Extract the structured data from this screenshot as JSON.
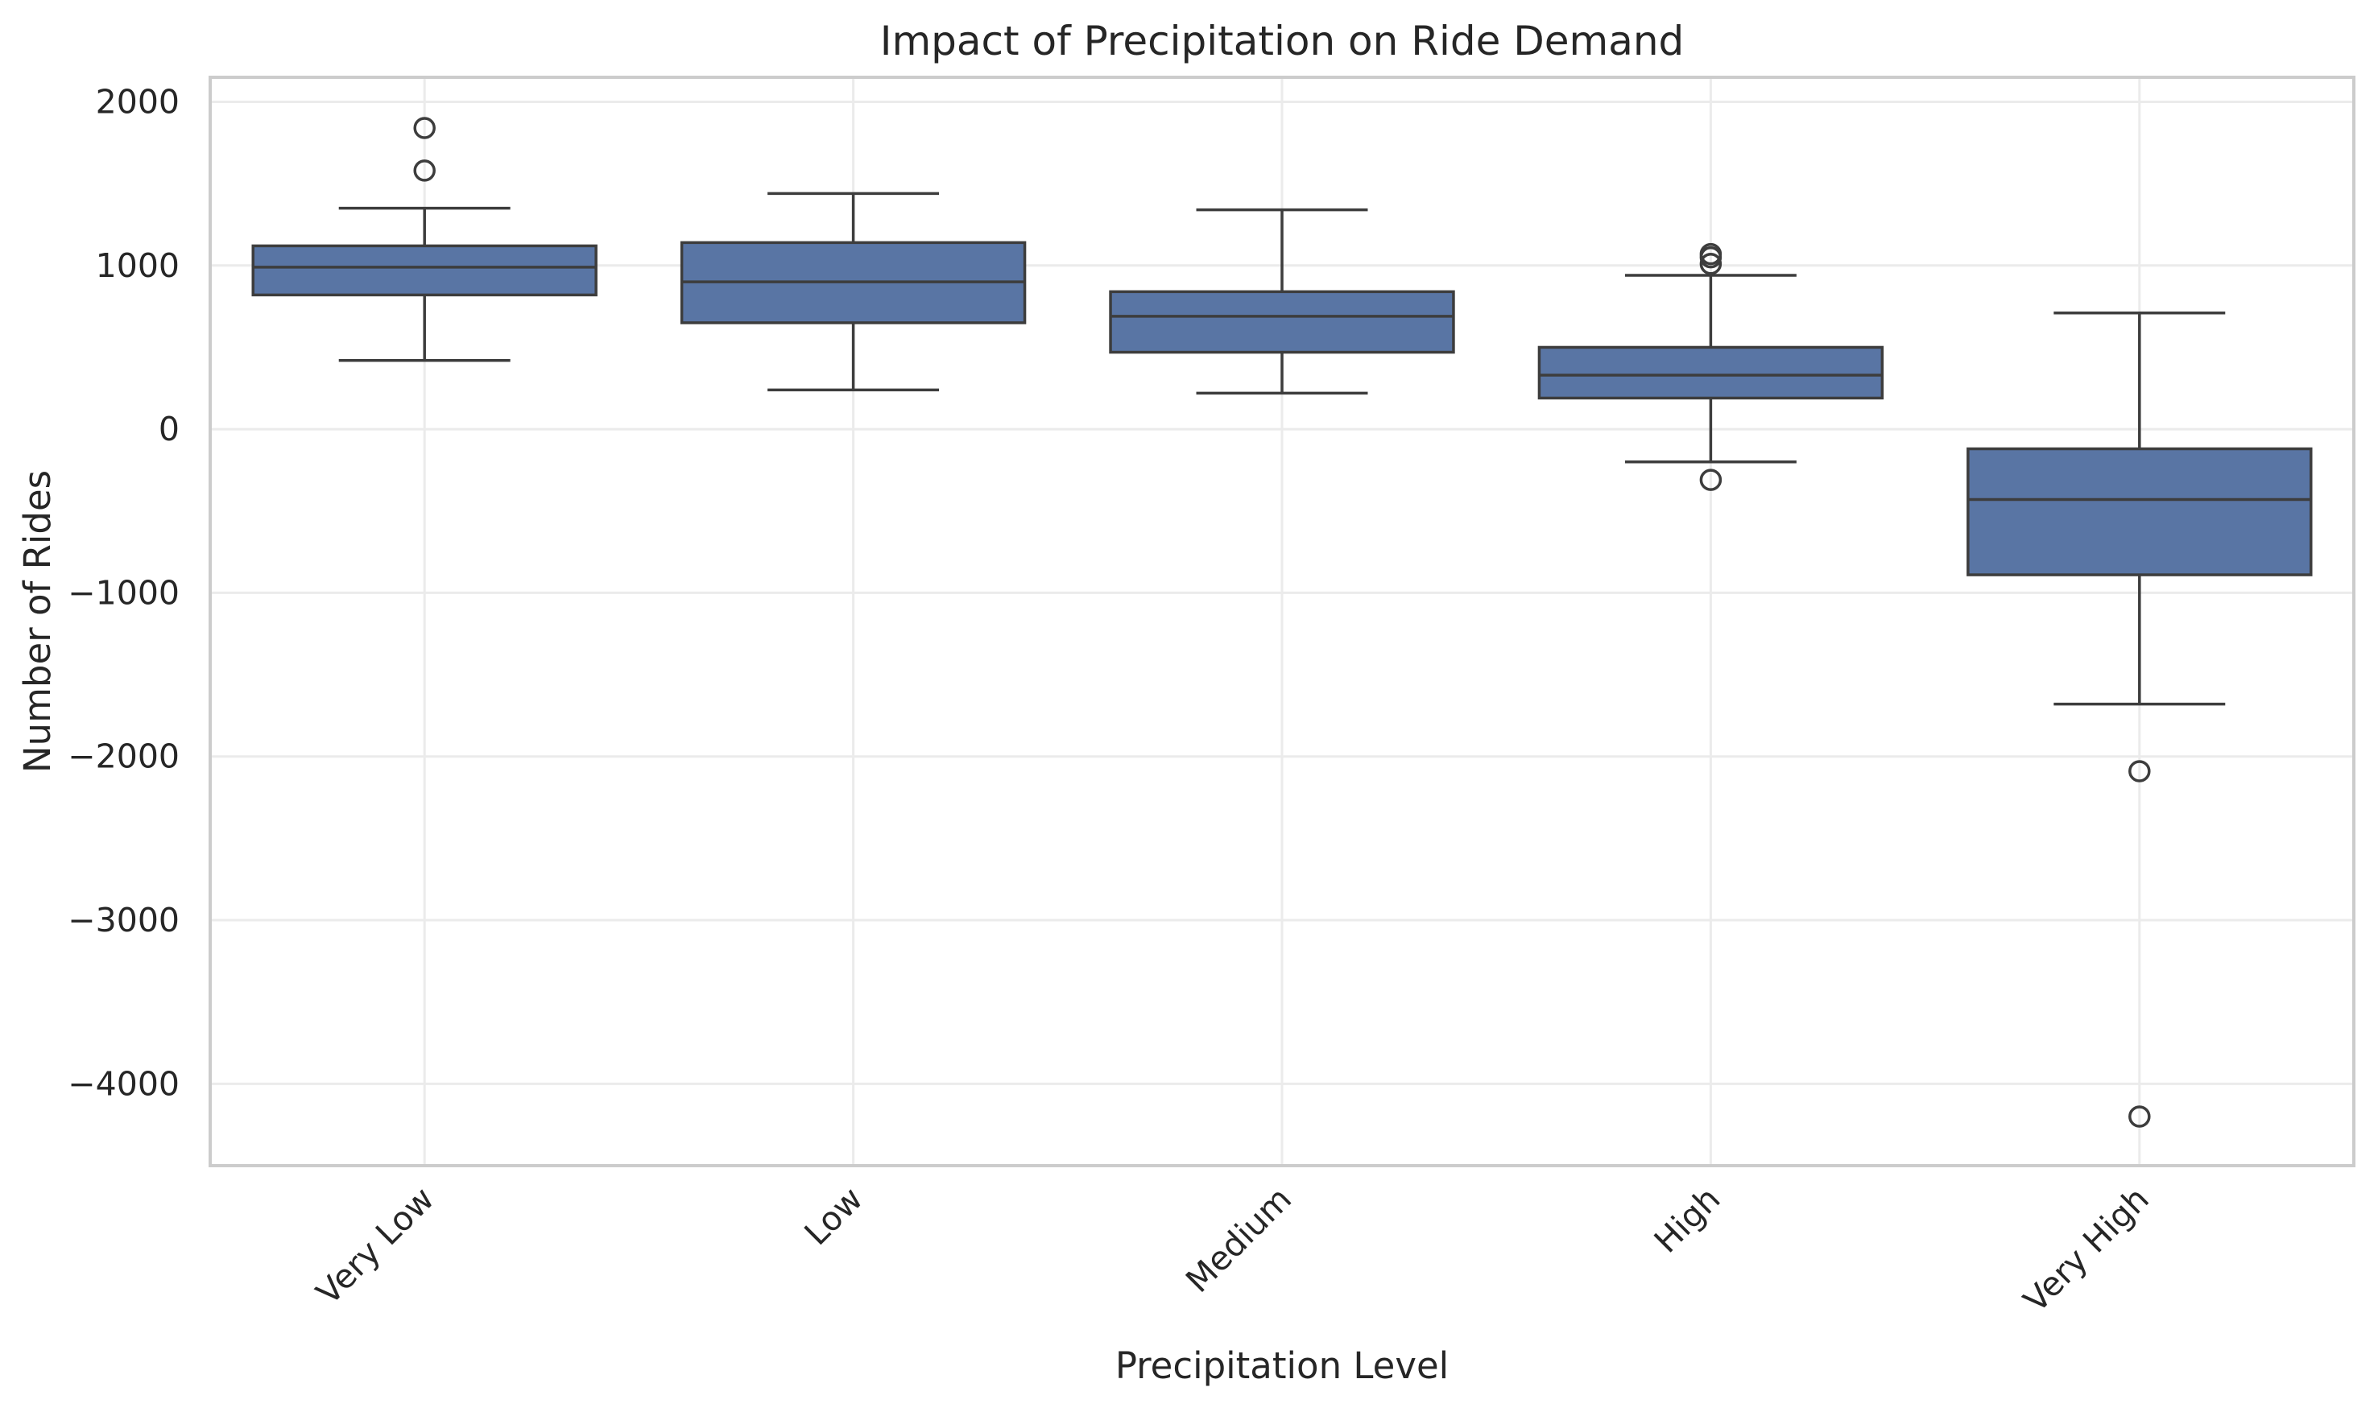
{
  "chart_data": {
    "type": "box",
    "title": "Impact of Precipitation on Ride Demand",
    "xlabel": "Precipitation Level",
    "ylabel": "Number of Rides",
    "ylim": [
      -4500,
      2150
    ],
    "yticks": [
      2000,
      1000,
      0,
      -1000,
      -2000,
      -3000,
      -4000
    ],
    "ytick_labels": [
      "2000",
      "1000",
      "0",
      "−1000",
      "−2000",
      "−3000",
      "−4000"
    ],
    "grid": true,
    "box_color": "#5975a4",
    "edge_color": "#3d3d3d",
    "categories": [
      "Very Low",
      "Low",
      "Medium",
      "High",
      "Very High"
    ],
    "boxes": [
      {
        "category": "Very Low",
        "whisker_low": 420,
        "q1": 820,
        "median": 990,
        "q3": 1120,
        "whisker_high": 1350,
        "outliers": [
          1840,
          1580
        ]
      },
      {
        "category": "Low",
        "whisker_low": 240,
        "q1": 650,
        "median": 900,
        "q3": 1140,
        "whisker_high": 1440,
        "outliers": []
      },
      {
        "category": "Medium",
        "whisker_low": 220,
        "q1": 470,
        "median": 690,
        "q3": 840,
        "whisker_high": 1340,
        "outliers": []
      },
      {
        "category": "High",
        "whisker_low": -200,
        "q1": 190,
        "median": 330,
        "q3": 500,
        "whisker_high": 940,
        "outliers": [
          1070,
          1050,
          1010,
          -310
        ]
      },
      {
        "category": "Very High",
        "whisker_low": -1680,
        "q1": -890,
        "median": -430,
        "q3": -120,
        "whisker_high": 710,
        "outliers": [
          -2090,
          -4200
        ]
      }
    ]
  }
}
